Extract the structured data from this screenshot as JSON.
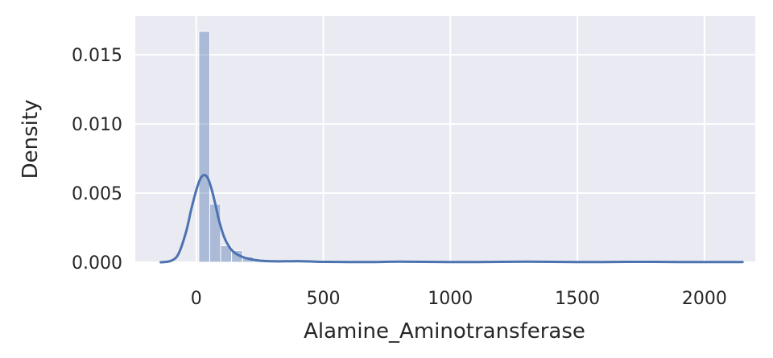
{
  "chart_data": {
    "type": "bar",
    "title": "",
    "xlabel": "Alamine_Aminotransferase",
    "ylabel": "Density",
    "xlim": [
      -240,
      2200
    ],
    "ylim": [
      0,
      0.0178
    ],
    "xticks": [
      0,
      500,
      1000,
      1500,
      2000
    ],
    "xtick_labels": [
      "0",
      "500",
      "1000",
      "1500",
      "2000"
    ],
    "yticks": [
      0,
      0.005,
      0.01,
      0.015
    ],
    "ytick_labels": [
      "0.000",
      "0.005",
      "0.010",
      "0.015"
    ],
    "grid": true,
    "colors": {
      "background": "#eaeaf2",
      "grid": "#ffffff",
      "bars": "#4c72b0",
      "kde": "#4c72b0",
      "text": "#262626"
    },
    "histogram": {
      "bin_width": 43,
      "bins": [
        {
          "x0": 10,
          "x1": 53,
          "density": 0.0167
        },
        {
          "x0": 53,
          "x1": 96,
          "density": 0.0042
        },
        {
          "x0": 96,
          "x1": 139,
          "density": 0.0012
        },
        {
          "x0": 139,
          "x1": 182,
          "density": 0.00085
        },
        {
          "x0": 182,
          "x1": 225,
          "density": 0.0004
        },
        {
          "x0": 225,
          "x1": 268,
          "density": 0.00012
        },
        {
          "x0": 268,
          "x1": 311,
          "density": 5e-05
        },
        {
          "x0": 311,
          "x1": 354,
          "density": 4e-05
        },
        {
          "x0": 354,
          "x1": 397,
          "density": 4e-05
        },
        {
          "x0": 397,
          "x1": 440,
          "density": 3e-05
        },
        {
          "x0": 440,
          "x1": 483,
          "density": 2e-05
        },
        {
          "x0": 784,
          "x1": 827,
          "density": 1e-05
        },
        {
          "x0": 1256,
          "x1": 1299,
          "density": 1e-05
        },
        {
          "x0": 1685,
          "x1": 1728,
          "density": 1e-05
        },
        {
          "x0": 2071,
          "x1": 2114,
          "density": 1e-05
        }
      ]
    },
    "kde": {
      "x": [
        -140,
        -100,
        -70,
        -40,
        -20,
        0,
        15,
        30,
        45,
        60,
        75,
        90,
        110,
        130,
        150,
        180,
        220,
        260,
        300,
        350,
        400,
        450,
        500,
        600,
        700,
        800,
        900,
        1000,
        1100,
        1200,
        1300,
        1400,
        1500,
        1600,
        1700,
        1800,
        1900,
        2000,
        2100,
        2150
      ],
      "y": [
        0.0,
        0.0001,
        0.0006,
        0.0022,
        0.0038,
        0.0052,
        0.006,
        0.0063,
        0.0061,
        0.0053,
        0.0042,
        0.003,
        0.0018,
        0.0011,
        0.0007,
        0.0004,
        0.0002,
        0.0001,
        7e-05,
        7e-05,
        8e-05,
        6e-05,
        3e-05,
        2e-05,
        2e-05,
        4e-05,
        3e-05,
        2e-05,
        2e-05,
        3e-05,
        4e-05,
        3e-05,
        2e-05,
        2e-05,
        3e-05,
        3e-05,
        2e-05,
        2e-05,
        2e-05,
        2e-05
      ]
    }
  }
}
